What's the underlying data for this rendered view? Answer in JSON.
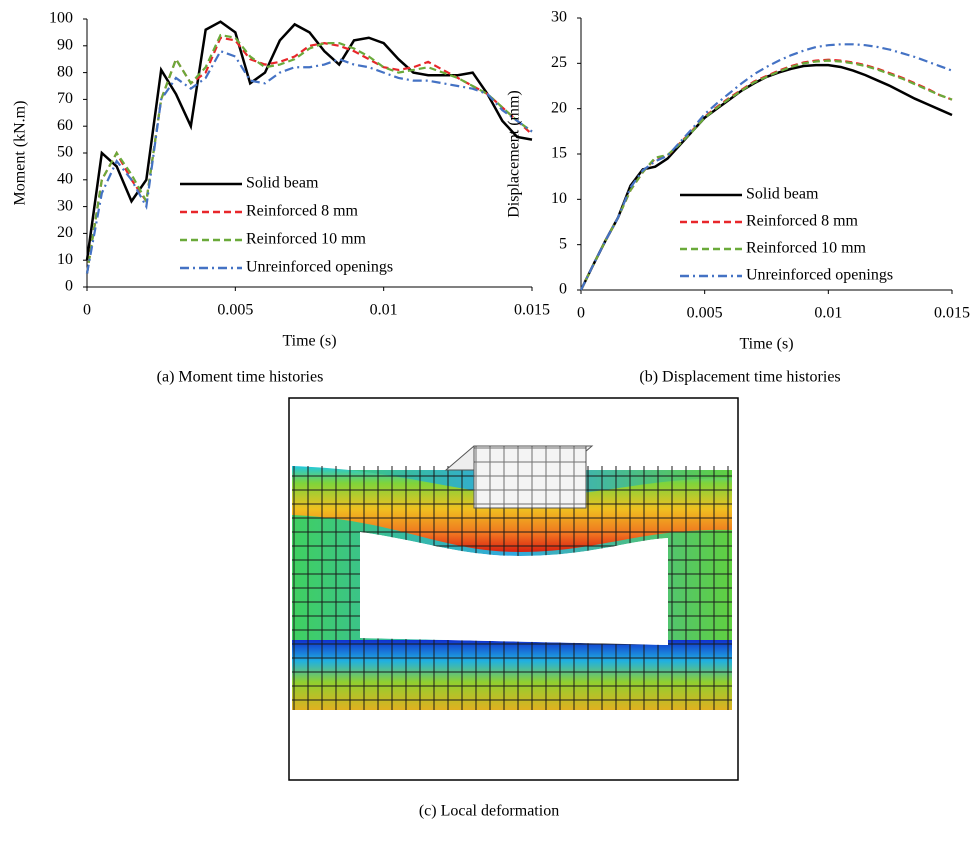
{
  "chart_data": [
    {
      "type": "line",
      "caption": "(a)  Moment time histories",
      "xlabel": "Time (s)",
      "ylabel": "Moment (kN.m)",
      "xlim": [
        0,
        0.015
      ],
      "xticks": [
        0,
        0.005,
        0.01,
        0.015
      ],
      "ylim": [
        0,
        100
      ],
      "yticks": [
        0,
        10,
        20,
        30,
        40,
        50,
        60,
        70,
        80,
        90,
        100
      ],
      "x": [
        0,
        0.0005,
        0.001,
        0.0015,
        0.002,
        0.0025,
        0.003,
        0.0035,
        0.004,
        0.0045,
        0.005,
        0.0055,
        0.006,
        0.0065,
        0.007,
        0.0075,
        0.008,
        0.0085,
        0.009,
        0.0095,
        0.01,
        0.0105,
        0.011,
        0.0115,
        0.012,
        0.0125,
        0.013,
        0.0135,
        0.014,
        0.0145,
        0.015
      ],
      "series": [
        {
          "name": "Solid beam",
          "color": "#000000",
          "dash": "solid",
          "values": [
            10,
            50,
            45,
            32,
            40,
            81,
            72,
            60,
            96,
            99,
            95,
            76,
            80,
            92,
            98,
            95,
            88,
            83,
            92,
            93,
            91,
            85,
            80,
            79,
            79,
            79,
            80,
            72,
            62,
            56,
            55
          ]
        },
        {
          "name": "Reinforced 8 mm",
          "color": "#e8262a",
          "dash": "dashed",
          "values": [
            5,
            40,
            50,
            40,
            32,
            70,
            85,
            76,
            80,
            93,
            92,
            85,
            83,
            84,
            86,
            90,
            91,
            90,
            88,
            85,
            82,
            81,
            82,
            84,
            81,
            78,
            75,
            72,
            67,
            62,
            57
          ]
        },
        {
          "name": "Reinforced 10 mm",
          "color": "#6aaa3a",
          "dash": "dashed",
          "values": [
            5,
            40,
            50,
            42,
            32,
            70,
            85,
            76,
            82,
            94,
            93,
            86,
            82,
            83,
            85,
            89,
            91,
            91,
            89,
            86,
            82,
            80,
            81,
            82,
            80,
            78,
            75,
            72,
            67,
            62,
            58
          ]
        },
        {
          "name": "Unreinforced openings",
          "color": "#4472c4",
          "dash": "dash-dot",
          "values": [
            5,
            35,
            47,
            40,
            30,
            70,
            78,
            74,
            78,
            88,
            86,
            77,
            76,
            80,
            82,
            82,
            83,
            85,
            83,
            82,
            80,
            78,
            77,
            77,
            76,
            75,
            74,
            72,
            66,
            62,
            58
          ]
        }
      ]
    },
    {
      "type": "line",
      "caption": "(b) Displacement time histories",
      "xlabel": "Time (s)",
      "ylabel": "Displacement (mm)",
      "xlim": [
        0,
        0.015
      ],
      "xticks": [
        0,
        0.005,
        0.01,
        0.015
      ],
      "ylim": [
        0,
        30
      ],
      "yticks": [
        0,
        5,
        10,
        15,
        20,
        25,
        30
      ],
      "x": [
        0,
        0.0005,
        0.001,
        0.0015,
        0.002,
        0.0025,
        0.003,
        0.0035,
        0.004,
        0.0045,
        0.005,
        0.0055,
        0.006,
        0.0065,
        0.007,
        0.0075,
        0.008,
        0.0085,
        0.009,
        0.0095,
        0.01,
        0.0105,
        0.011,
        0.0115,
        0.012,
        0.0125,
        0.013,
        0.0135,
        0.014,
        0.0145,
        0.015
      ],
      "series": [
        {
          "name": "Solid beam",
          "color": "#000000",
          "dash": "solid",
          "values": [
            0,
            2.8,
            5.5,
            8,
            11.5,
            13.3,
            13.6,
            14.5,
            16,
            17.5,
            19,
            20,
            21,
            22,
            22.8,
            23.5,
            24,
            24.4,
            24.7,
            24.8,
            24.8,
            24.6,
            24.2,
            23.7,
            23.1,
            22.5,
            21.8,
            21.1,
            20.5,
            19.9,
            19.3
          ]
        },
        {
          "name": "Reinforced 8 mm",
          "color": "#e8262a",
          "dash": "dashed",
          "values": [
            0,
            2.8,
            5.5,
            8,
            11,
            13,
            14.5,
            14.8,
            16.2,
            17.6,
            19.1,
            20.2,
            21.2,
            22.1,
            23,
            23.6,
            24.2,
            24.7,
            25.1,
            25.3,
            25.4,
            25.3,
            25.1,
            24.8,
            24.4,
            23.9,
            23.4,
            22.8,
            22.2,
            21.5,
            21
          ]
        },
        {
          "name": "Reinforced 10 mm",
          "color": "#6aaa3a",
          "dash": "dashed",
          "values": [
            0,
            2.8,
            5.5,
            8,
            11,
            13,
            14.6,
            14.9,
            16.1,
            17.5,
            19,
            20.1,
            21.1,
            22,
            22.9,
            23.5,
            24.1,
            24.6,
            25,
            25.2,
            25.3,
            25.2,
            25,
            24.7,
            24.3,
            23.8,
            23.3,
            22.7,
            22.1,
            21.5,
            21
          ]
        },
        {
          "name": "Unreinforced openings",
          "color": "#4472c4",
          "dash": "dash-dot",
          "values": [
            0,
            2.8,
            5.5,
            8,
            11.3,
            13.2,
            14.2,
            14.8,
            16.3,
            17.8,
            19.4,
            20.6,
            21.7,
            22.8,
            23.8,
            24.6,
            25.3,
            25.9,
            26.4,
            26.8,
            27,
            27.1,
            27.1,
            27,
            26.8,
            26.5,
            26.1,
            25.7,
            25.2,
            24.7,
            24.2
          ]
        }
      ]
    }
  ],
  "figure_c": {
    "caption": "(c) Local deformation"
  }
}
